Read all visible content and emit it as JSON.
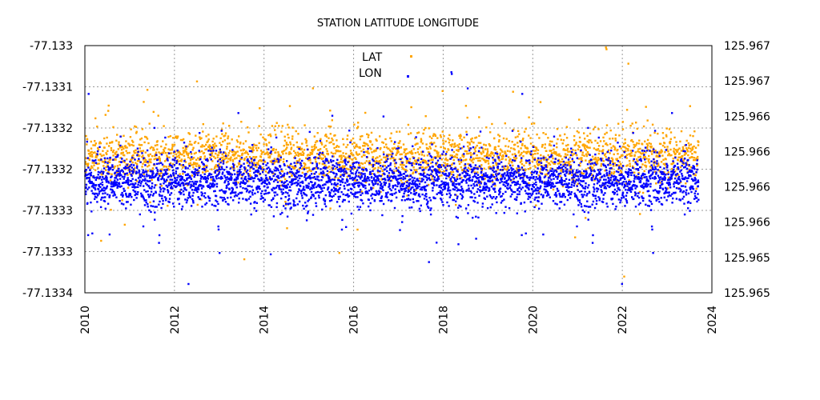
{
  "chart_data": {
    "type": "scatter",
    "title": "STATION LATITUDE LONGITUDE",
    "xlabel": "",
    "ylabel": "",
    "xlim": [
      2010,
      2024
    ],
    "x_ticks": [
      "2010",
      "2012",
      "2014",
      "2016",
      "2018",
      "2020",
      "2022",
      "2024"
    ],
    "ylim_left": [
      -77.1334,
      -77.133
    ],
    "y_ticks_left": [
      "-77.133",
      "-77.1331",
      "-77.1332",
      "-77.1332",
      "-77.1333",
      "-77.1333",
      "-77.1334"
    ],
    "ylim_right": [
      125.965,
      125.967
    ],
    "y_ticks_right": [
      "125.967",
      "125.967",
      "125.966",
      "125.966",
      "125.966",
      "125.966",
      "125.965",
      "125.965"
    ],
    "grid": true,
    "legend": {
      "placement": "top-center"
    },
    "series": [
      {
        "name": "LAT",
        "axis": "left",
        "color": "#FFA500",
        "data_range": [
          2010.0,
          2023.7
        ],
        "center": -77.13318,
        "spread": 2e-05
      },
      {
        "name": "LON",
        "axis": "right",
        "color": "#0000FF",
        "data_range": [
          2010.0,
          2023.7
        ],
        "center": 125.9659,
        "spread": 0.0001
      }
    ]
  }
}
